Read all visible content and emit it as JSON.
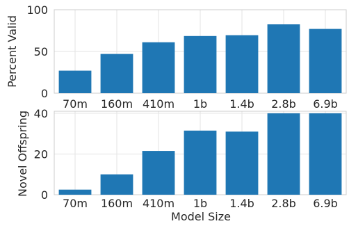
{
  "colors": {
    "bar": "#1f77b4",
    "grid": "#e3e3e3",
    "spine": "#cccccc",
    "text": "#262626"
  },
  "xlabel": "Model Size",
  "chart_data": [
    {
      "type": "bar",
      "categories": [
        "70m",
        "160m",
        "410m",
        "1b",
        "1.4b",
        "2.8b",
        "6.9b"
      ],
      "values": [
        27,
        47,
        61,
        68.5,
        69.5,
        82.5,
        77
      ],
      "ylabel": "Percent Valid",
      "ylim": [
        0,
        100
      ],
      "yticks": [
        0,
        50,
        100
      ],
      "grid": true
    },
    {
      "type": "bar",
      "categories": [
        "70m",
        "160m",
        "410m",
        "1b",
        "1.4b",
        "2.8b",
        "6.9b"
      ],
      "values": [
        2.5,
        10,
        21.5,
        31.5,
        31,
        40,
        40
      ],
      "ylabel": "Novel Offspring",
      "ylim": [
        0,
        41
      ],
      "yticks": [
        0,
        20,
        40
      ],
      "grid": true
    }
  ]
}
